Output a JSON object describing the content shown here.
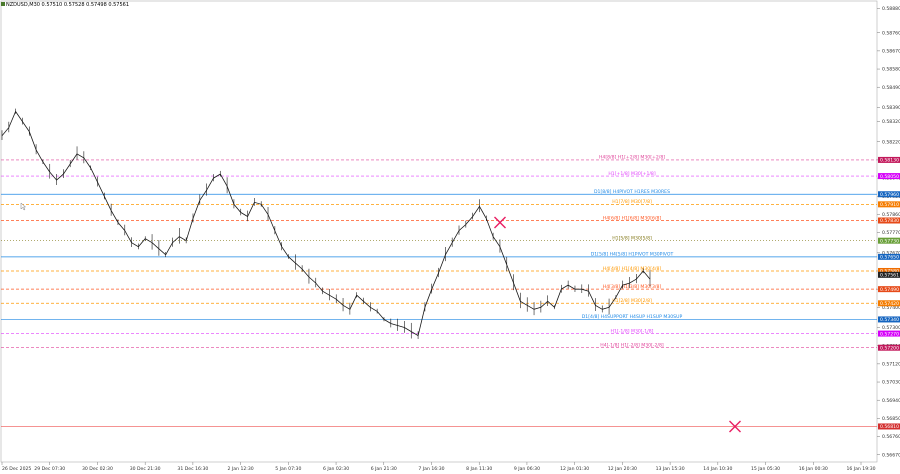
{
  "window": {
    "title": "NZDUSD,M30  0.57510 0.57528 0.57498 0.57561"
  },
  "chart_data": {
    "type": "line",
    "title": "NZDUSD,M30",
    "price_scale": {
      "min": 0.56634,
      "max": 0.58917,
      "ticks": [
        "0.58880",
        "0.58760",
        "0.58670",
        "0.58580",
        "0.58490",
        "0.58390",
        "0.58320",
        "0.58220",
        "0.58130",
        "0.58040",
        "0.57950",
        "0.57860",
        "0.57770",
        "0.57670",
        "0.57580",
        "0.57490",
        "0.57400",
        "0.57300",
        "0.57210",
        "0.57120",
        "0.57030",
        "0.56940",
        "0.56850",
        "0.56760",
        "0.56670"
      ]
    },
    "time_axis": {
      "labels": [
        "26 Dec 2025",
        "29 Dec 07:30",
        "30 Dec 02:30",
        "30 Dec 21:30",
        "31 Dec 16:30",
        "2 Jan 12:30",
        "5 Jan 07:30",
        "6 Jan 02:30",
        "6 Jan 21:30",
        "7 Jan 16:30",
        "8 Jan 11:30",
        "9 Jan 06:30",
        "12 Jan 01:30",
        "12 Jan 20:30",
        "13 Jan 15:30",
        "14 Jan 10:30",
        "15 Jan 05:30",
        "16 Jan 00:30",
        "16 Jan 19:30"
      ]
    },
    "series": [
      {
        "values": [
          0.5825,
          0.5829,
          0.5837,
          0.5832,
          0.5827,
          0.5818,
          0.5812,
          0.5807,
          0.5803,
          0.5806,
          0.5811,
          0.5816,
          0.5814,
          0.5809,
          0.5802,
          0.5795,
          0.5788,
          0.5782,
          0.5778,
          0.5772,
          0.577,
          0.5774,
          0.5772,
          0.5769,
          0.5766,
          0.5772,
          0.5775,
          0.5773,
          0.5784,
          0.5793,
          0.5798,
          0.5804,
          0.5806,
          0.58,
          0.5791,
          0.5787,
          0.5785,
          0.5792,
          0.5791,
          0.5786,
          0.5778,
          0.577,
          0.5765,
          0.5762,
          0.5759,
          0.5755,
          0.5752,
          0.5748,
          0.5746,
          0.5744,
          0.5741,
          0.5739,
          0.5746,
          0.5743,
          0.574,
          0.5738,
          0.5734,
          0.5732,
          0.5731,
          0.573,
          0.5728,
          0.5726,
          0.574,
          0.5749,
          0.5757,
          0.5766,
          0.5772,
          0.5778,
          0.5781,
          0.5785,
          0.579,
          0.5784,
          0.5775,
          0.577,
          0.5761,
          0.5752,
          0.5743,
          0.5741,
          0.5739,
          0.574,
          0.5743,
          0.574,
          0.5749,
          0.5751,
          0.5749,
          0.5749,
          0.5748,
          0.5741,
          0.5739,
          0.574,
          0.5745,
          0.5751,
          0.5752,
          0.5754,
          0.5758,
          0.5754
        ],
        "color": "#1a1a1a"
      }
    ],
    "levels": [
      {
        "label": "H4[8/8] H1[+2/8] M30[+2/8]",
        "price_label": "0.58130",
        "price": 0.5813,
        "color": "#e0449a",
        "style": "dashed",
        "badge": "#c2185b"
      },
      {
        "label": "H1[+1/8] M30[+1/8]",
        "price_label": "0.58050",
        "price": 0.5805,
        "color": "#e040fb",
        "style": "dashed",
        "badge": "#d500f9"
      },
      {
        "label": "D1[8/8] H4PIVOT H1RES M30RES",
        "price_label": "0.57960",
        "price": 0.5796,
        "color": "#1e88e5",
        "style": "solid",
        "badge": "#1565c0"
      },
      {
        "label": "H1[7/8] M30[7/8]",
        "price_label": "0.57910",
        "price": 0.5791,
        "color": "#ff9800",
        "style": "dashed",
        "badge": "#f57c00"
      },
      {
        "label": "H4[6/8] H1[6/8] M30[6/8]",
        "price_label": "0.57830",
        "price": 0.5783,
        "color": "#ff5722",
        "style": "dashed",
        "badge": "#e64a19"
      },
      {
        "label": "H1[5/8] M30[5/8]",
        "price_label": "0.57730",
        "price": 0.5773,
        "color": "#827717",
        "style": "dotted",
        "badge": "#689f38"
      },
      {
        "label": "D1[5/8] H4[5/8] H1PIVOT M30PIVOT",
        "price_label": "0.57650",
        "price": 0.5765,
        "color": "#1e88e5",
        "style": "solid",
        "badge": "#1565c0"
      },
      {
        "label": "H4[4/8] H1[4/8] M30[4/8]",
        "price_label": "0.57580",
        "price": 0.5758,
        "color": "#ff9800",
        "style": "dashed",
        "badge": "#ef6c00"
      },
      {
        "label": "H4[3/8] H1[3/8] M30[3/8]",
        "price_label": "0.57490",
        "price": 0.5749,
        "color": "#ff5722",
        "style": "dashed",
        "badge": "#e64a19"
      },
      {
        "label": "H1[2/8] M30[2/8]",
        "price_label": "0.57420",
        "price": 0.5742,
        "color": "#ff9800",
        "style": "dashed",
        "badge": "#f57c00"
      },
      {
        "label": "D1[4/8] H4SUPPORT H4SUP H1SUP M30SUP",
        "price_label": "0.57340",
        "price": 0.5734,
        "color": "#1e88e5",
        "style": "solid",
        "badge": "#1565c0"
      },
      {
        "label": "H1[-1/8] M30[-1/8]",
        "price_label": "0.57270",
        "price": 0.5727,
        "color": "#e040fb",
        "style": "dashed",
        "badge": "#d500f9"
      },
      {
        "label": "H4[-1/8] H1[-2/8] M30[-2/8]",
        "price_label": "0.57200",
        "price": 0.572,
        "color": "#e0449a",
        "style": "dashed",
        "badge": "#c2185b"
      },
      {
        "label": "",
        "price_label": "0.56810",
        "price": 0.5681,
        "color": "#ef5350",
        "style": "solid",
        "badge": "#d32f2f"
      }
    ],
    "current_price": {
      "price_label": "0.57561",
      "price": 0.57561,
      "badge": "#222222"
    },
    "markers": [
      {
        "type": "cross",
        "price": 0.5782,
        "color": "#e91e63"
      },
      {
        "type": "cross",
        "price": 0.5681,
        "color": "#e91e63"
      }
    ],
    "grid": false
  }
}
